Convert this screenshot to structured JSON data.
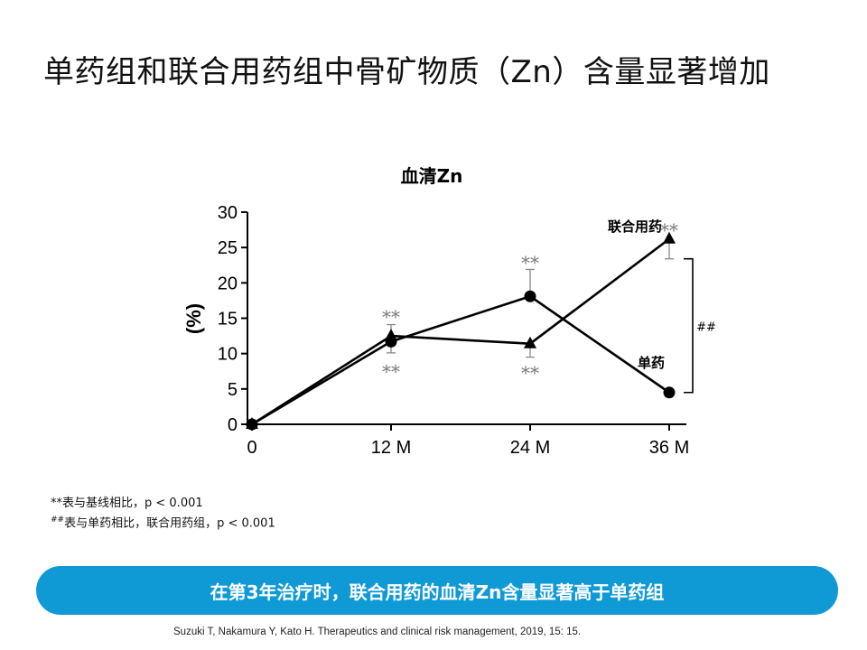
{
  "slide": {
    "title": "单药组和联合用药组中骨矿物质（Zn）含量显著增加",
    "footnote_1": "**表与基线相比，p < 0.001",
    "footnote_2_sup": "##",
    "footnote_2": "表与单药相比，联合用药组，p < 0.001",
    "banner": "在第3年治疗时，联合用药的血清Zn含量显著高于单药组",
    "citation": "Suzuki T, Nakamura Y, Kato H.  Therapeutics  and  clinical risk management, 2019, 15: 15."
  },
  "chart_data": {
    "type": "line",
    "title": "血清Zn",
    "ylabel": "(%)",
    "xlabel": "",
    "categories": [
      "0",
      "12 M",
      "24 M",
      "36 M"
    ],
    "ylim": [
      0,
      30
    ],
    "yticks": [
      0,
      5,
      10,
      15,
      20,
      25,
      30
    ],
    "grid": false,
    "series": [
      {
        "name": "单药",
        "marker": "circle",
        "values": [
          0,
          11.7,
          18.1,
          4.5
        ],
        "error_up": [
          null,
          null,
          3.8,
          null
        ],
        "error_down": [
          null,
          null,
          null,
          null
        ]
      },
      {
        "name": "联合用药",
        "marker": "triangle",
        "values": [
          0,
          12.5,
          11.4,
          26.2
        ],
        "error_up": [
          null,
          1.6,
          null,
          null
        ],
        "error_down": [
          null,
          2.4,
          1.9,
          2.8
        ]
      }
    ],
    "annotations": [
      {
        "text": "**",
        "x": "12 M",
        "y": 15.3,
        "series": "联合用药"
      },
      {
        "text": "**",
        "x": "12 M",
        "y": 7.6,
        "series": "单药"
      },
      {
        "text": "**",
        "x": "24 M",
        "y": 23.0,
        "series": "单药"
      },
      {
        "text": "**",
        "x": "24 M",
        "y": 7.4,
        "series": "联合用药"
      },
      {
        "text": "**",
        "x": "36 M",
        "y": 27.6,
        "series": "联合用药"
      }
    ],
    "bracket": {
      "text": "##",
      "from": 4.5,
      "to": 23.4,
      "at": "36 M"
    },
    "colors": {
      "line": "#000000",
      "stars": "#777777"
    }
  }
}
